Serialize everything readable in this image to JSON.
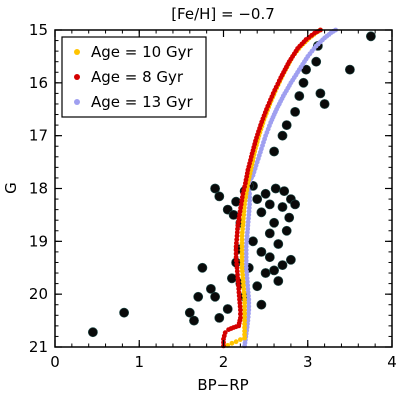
{
  "chart_data": {
    "type": "scatter",
    "title": "[Fe/H] = −0.7",
    "xlabel": "BP−RP",
    "ylabel": "G",
    "xlim": [
      0,
      4
    ],
    "ylim": [
      15,
      21
    ],
    "y_inverted": true,
    "xticks": [
      0,
      1,
      2,
      3,
      4
    ],
    "yticks": [
      15,
      16,
      17,
      18,
      19,
      20,
      21
    ],
    "xtick_labels": [
      "0",
      "1",
      "2",
      "3",
      "4"
    ],
    "ytick_labels": [
      "15",
      "16",
      "17",
      "18",
      "19",
      "20",
      "21"
    ],
    "grid": false,
    "legend_position": "top-left",
    "series": [
      {
        "name": "Age = 10 Gyr",
        "color": "#ffc400",
        "kind": "isochrone",
        "points": [
          [
            2.05,
            20.97
          ],
          [
            2.1,
            20.93
          ],
          [
            2.15,
            20.9
          ],
          [
            2.2,
            20.86
          ],
          [
            2.25,
            20.83
          ],
          [
            2.25,
            20.7
          ],
          [
            2.25,
            20.5
          ],
          [
            2.25,
            20.3
          ],
          [
            2.25,
            20.1
          ],
          [
            2.24,
            19.9
          ],
          [
            2.23,
            19.7
          ],
          [
            2.22,
            19.5
          ],
          [
            2.22,
            19.3
          ],
          [
            2.22,
            19.1
          ],
          [
            2.22,
            18.9
          ],
          [
            2.23,
            18.7
          ],
          [
            2.24,
            18.5
          ],
          [
            2.25,
            18.3
          ],
          [
            2.27,
            18.1
          ],
          [
            2.29,
            17.9
          ],
          [
            2.33,
            17.6
          ],
          [
            2.37,
            17.3
          ],
          [
            2.42,
            17.0
          ],
          [
            2.48,
            16.7
          ],
          [
            2.55,
            16.4
          ],
          [
            2.63,
            16.1
          ],
          [
            2.72,
            15.8
          ],
          [
            2.82,
            15.5
          ],
          [
            2.92,
            15.3
          ],
          [
            3.02,
            15.15
          ],
          [
            3.1,
            15.05
          ],
          [
            3.15,
            15.0
          ]
        ]
      },
      {
        "name": "Age = 8 Gyr",
        "color": "#d40000",
        "kind": "isochrone",
        "points": [
          [
            2.0,
            20.98
          ],
          [
            2.0,
            20.85
          ],
          [
            2.02,
            20.73
          ],
          [
            2.06,
            20.67
          ],
          [
            2.12,
            20.63
          ],
          [
            2.18,
            20.6
          ],
          [
            2.2,
            20.45
          ],
          [
            2.2,
            20.3
          ],
          [
            2.19,
            20.1
          ],
          [
            2.18,
            19.9
          ],
          [
            2.17,
            19.7
          ],
          [
            2.16,
            19.5
          ],
          [
            2.15,
            19.3
          ],
          [
            2.15,
            19.1
          ],
          [
            2.16,
            18.9
          ],
          [
            2.17,
            18.7
          ],
          [
            2.19,
            18.5
          ],
          [
            2.21,
            18.3
          ],
          [
            2.23,
            18.1
          ],
          [
            2.26,
            17.9
          ],
          [
            2.29,
            17.65
          ],
          [
            2.33,
            17.4
          ],
          [
            2.38,
            17.1
          ],
          [
            2.44,
            16.8
          ],
          [
            2.51,
            16.5
          ],
          [
            2.59,
            16.2
          ],
          [
            2.68,
            15.9
          ],
          [
            2.78,
            15.6
          ],
          [
            2.88,
            15.35
          ],
          [
            2.98,
            15.18
          ],
          [
            3.08,
            15.06
          ],
          [
            3.15,
            15.0
          ]
        ]
      },
      {
        "name": "Age = 13 Gyr",
        "color": "#9f9ff0",
        "kind": "isochrone",
        "points": [
          [
            2.25,
            20.98
          ],
          [
            2.27,
            20.75
          ],
          [
            2.29,
            20.5
          ],
          [
            2.3,
            20.3
          ],
          [
            2.3,
            20.1
          ],
          [
            2.29,
            19.9
          ],
          [
            2.28,
            19.7
          ],
          [
            2.27,
            19.5
          ],
          [
            2.27,
            19.3
          ],
          [
            2.27,
            19.1
          ],
          [
            2.28,
            18.9
          ],
          [
            2.29,
            18.7
          ],
          [
            2.3,
            18.5
          ],
          [
            2.31,
            18.3
          ],
          [
            2.31,
            18.1
          ],
          [
            2.28,
            17.95
          ],
          [
            2.35,
            17.75
          ],
          [
            2.4,
            17.5
          ],
          [
            2.45,
            17.25
          ],
          [
            2.5,
            17.0
          ],
          [
            2.56,
            16.75
          ],
          [
            2.63,
            16.5
          ],
          [
            2.71,
            16.25
          ],
          [
            2.8,
            16.0
          ],
          [
            2.9,
            15.75
          ],
          [
            3.0,
            15.5
          ],
          [
            3.1,
            15.3
          ],
          [
            3.2,
            15.15
          ],
          [
            3.28,
            15.05
          ],
          [
            3.33,
            15.0
          ]
        ]
      },
      {
        "name": "",
        "color": "#0a0a0a",
        "kind": "stars",
        "points": [
          [
            0.45,
            20.72
          ],
          [
            0.82,
            20.35
          ],
          [
            1.6,
            20.35
          ],
          [
            1.65,
            20.5
          ],
          [
            1.7,
            20.05
          ],
          [
            1.75,
            19.5
          ],
          [
            1.85,
            19.9
          ],
          [
            1.9,
            20.05
          ],
          [
            1.95,
            20.45
          ],
          [
            2.05,
            20.28
          ],
          [
            2.1,
            19.7
          ],
          [
            2.15,
            19.4
          ],
          [
            2.18,
            19.15
          ],
          [
            2.2,
            19.8
          ],
          [
            2.25,
            20.05
          ],
          [
            2.3,
            19.5
          ],
          [
            2.4,
            19.85
          ],
          [
            2.45,
            20.2
          ],
          [
            2.5,
            19.6
          ],
          [
            2.55,
            19.3
          ],
          [
            2.6,
            19.55
          ],
          [
            2.65,
            19.75
          ],
          [
            2.7,
            19.45
          ],
          [
            2.35,
            19.0
          ],
          [
            2.45,
            19.2
          ],
          [
            2.55,
            18.85
          ],
          [
            2.65,
            19.05
          ],
          [
            2.75,
            18.8
          ],
          [
            2.8,
            19.35
          ],
          [
            1.9,
            18.0
          ],
          [
            1.95,
            18.15
          ],
          [
            2.05,
            18.4
          ],
          [
            2.12,
            18.5
          ],
          [
            2.15,
            18.25
          ],
          [
            2.2,
            18.65
          ],
          [
            2.25,
            18.05
          ],
          [
            2.35,
            17.95
          ],
          [
            2.4,
            18.2
          ],
          [
            2.45,
            18.45
          ],
          [
            2.5,
            18.1
          ],
          [
            2.55,
            18.3
          ],
          [
            2.6,
            18.65
          ],
          [
            2.62,
            18.0
          ],
          [
            2.7,
            18.35
          ],
          [
            2.72,
            18.05
          ],
          [
            2.78,
            18.55
          ],
          [
            2.8,
            18.2
          ],
          [
            2.85,
            18.3
          ],
          [
            2.6,
            17.3
          ],
          [
            2.7,
            17.0
          ],
          [
            2.75,
            16.8
          ],
          [
            2.85,
            16.55
          ],
          [
            2.9,
            16.25
          ],
          [
            2.95,
            16.0
          ],
          [
            2.98,
            15.75
          ],
          [
            3.1,
            15.6
          ],
          [
            3.15,
            16.2
          ],
          [
            3.2,
            16.4
          ],
          [
            3.12,
            15.3
          ],
          [
            3.5,
            15.75
          ],
          [
            3.75,
            15.12
          ],
          [
            2.3,
            17.95
          ]
        ]
      }
    ]
  }
}
